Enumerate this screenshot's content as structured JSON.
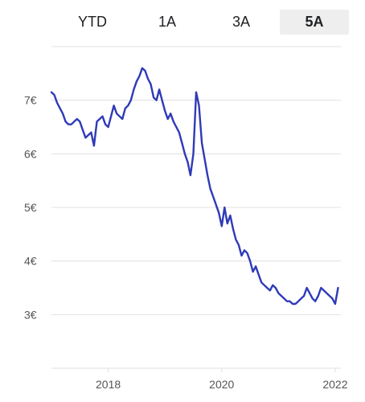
{
  "range_tabs": {
    "items": [
      {
        "label": "YTD",
        "active": false
      },
      {
        "label": "1A",
        "active": false
      },
      {
        "label": "3A",
        "active": false
      },
      {
        "label": "5A",
        "active": true
      }
    ]
  },
  "colors": {
    "line": "#2f3ab8",
    "active_tab_bg": "#eeeeee",
    "grid": "#e0e0e0"
  },
  "chart_data": {
    "type": "line",
    "title": "",
    "xlabel": "",
    "ylabel": "",
    "ylim": [
      2.0,
      8.0
    ],
    "xlim": [
      2017.0,
      2022.1
    ],
    "yticks": [
      {
        "value": 3,
        "label": "3€"
      },
      {
        "value": 4,
        "label": "4€"
      },
      {
        "value": 5,
        "label": "5€"
      },
      {
        "value": 6,
        "label": "6€"
      },
      {
        "value": 7,
        "label": "7€"
      }
    ],
    "xticks": [
      {
        "value": 2018,
        "label": "2018"
      },
      {
        "value": 2020,
        "label": "2020"
      },
      {
        "value": 2022,
        "label": "2022"
      }
    ],
    "grid": true,
    "series": [
      {
        "x": [
          2017.0,
          2017.05,
          2017.1,
          2017.15,
          2017.2,
          2017.25,
          2017.3,
          2017.35,
          2017.4,
          2017.45,
          2017.5,
          2017.55,
          2017.6,
          2017.65,
          2017.7,
          2017.75,
          2017.8,
          2017.85,
          2017.9,
          2017.95,
          2018.0,
          2018.05,
          2018.1,
          2018.15,
          2018.2,
          2018.25,
          2018.3,
          2018.35,
          2018.4,
          2018.45,
          2018.5,
          2018.55,
          2018.6,
          2018.65,
          2018.7,
          2018.75,
          2018.8,
          2018.85,
          2018.9,
          2018.95,
          2019.0,
          2019.05,
          2019.1,
          2019.15,
          2019.2,
          2019.25,
          2019.3,
          2019.35,
          2019.4,
          2019.45,
          2019.5,
          2019.55,
          2019.6,
          2019.65,
          2019.7,
          2019.75,
          2019.8,
          2019.85,
          2019.9,
          2019.95,
          2020.0,
          2020.05,
          2020.1,
          2020.15,
          2020.2,
          2020.25,
          2020.3,
          2020.35,
          2020.4,
          2020.45,
          2020.5,
          2020.55,
          2020.6,
          2020.65,
          2020.7,
          2020.75,
          2020.8,
          2020.85,
          2020.9,
          2020.95,
          2021.0,
          2021.05,
          2021.1,
          2021.15,
          2021.2,
          2021.25,
          2021.3,
          2021.35,
          2021.4,
          2021.45,
          2021.5,
          2021.55,
          2021.6,
          2021.65,
          2021.7,
          2021.75,
          2021.8,
          2021.85,
          2021.9,
          2021.95,
          2022.0,
          2022.05
        ],
        "y": [
          7.15,
          7.1,
          6.95,
          6.85,
          6.75,
          6.6,
          6.55,
          6.55,
          6.6,
          6.65,
          6.6,
          6.45,
          6.3,
          6.35,
          6.4,
          6.15,
          6.6,
          6.65,
          6.7,
          6.55,
          6.5,
          6.7,
          6.9,
          6.75,
          6.7,
          6.65,
          6.85,
          6.9,
          7.0,
          7.2,
          7.35,
          7.45,
          7.6,
          7.55,
          7.4,
          7.3,
          7.05,
          7.0,
          7.2,
          7.0,
          6.8,
          6.65,
          6.75,
          6.6,
          6.5,
          6.4,
          6.2,
          6.0,
          5.85,
          5.6,
          6.0,
          7.15,
          6.9,
          6.2,
          5.9,
          5.6,
          5.35,
          5.2,
          5.05,
          4.9,
          4.65,
          5.0,
          4.7,
          4.85,
          4.6,
          4.4,
          4.3,
          4.1,
          4.2,
          4.15,
          4.0,
          3.8,
          3.9,
          3.75,
          3.6,
          3.55,
          3.5,
          3.45,
          3.55,
          3.5,
          3.4,
          3.35,
          3.3,
          3.25,
          3.25,
          3.2,
          3.2,
          3.25,
          3.3,
          3.35,
          3.5,
          3.4,
          3.3,
          3.25,
          3.35,
          3.5,
          3.45,
          3.4,
          3.35,
          3.3,
          3.2,
          3.5
        ]
      }
    ]
  }
}
